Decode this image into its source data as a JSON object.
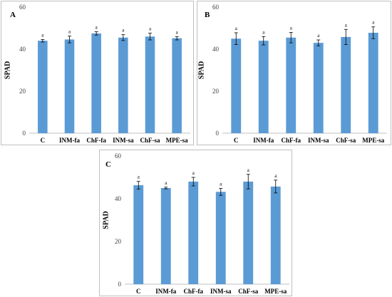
{
  "chart_data": [
    {
      "type": "bar",
      "panel_label": "A",
      "ylabel": "SPAD",
      "ylim": [
        0,
        60
      ],
      "yticks": [
        "0",
        "20",
        "40",
        "60"
      ],
      "categories": [
        "C",
        "INM-fa",
        "ChF-fa",
        "INM-sa",
        "ChF-sa",
        "MPE-sa"
      ],
      "values": [
        44.0,
        44.6,
        47.5,
        45.5,
        46.0,
        45.2
      ],
      "errors": [
        0.6,
        1.6,
        0.8,
        1.4,
        1.6,
        0.8
      ],
      "significance": [
        "a",
        "a",
        "a",
        "a",
        "a",
        "a"
      ],
      "bar_color": "#5b9bd5"
    },
    {
      "type": "bar",
      "panel_label": "B",
      "ylabel": "SPAD",
      "ylim": [
        0,
        60
      ],
      "yticks": [
        "0",
        "20",
        "40",
        "60"
      ],
      "categories": [
        "C",
        "INM-fa",
        "ChF-fa",
        "INM-sa",
        "ChF-sa",
        "MPE-sa"
      ],
      "values": [
        45.0,
        44.0,
        45.5,
        43.0,
        45.8,
        47.8
      ],
      "errors": [
        2.8,
        2.0,
        2.5,
        1.4,
        3.6,
        2.8
      ],
      "significance": [
        "a",
        "a",
        "a",
        "a",
        "a",
        "a"
      ],
      "bar_color": "#5b9bd5"
    },
    {
      "type": "bar",
      "panel_label": "C",
      "ylabel": "SPAD",
      "ylim": [
        0,
        60
      ],
      "yticks": [
        "0",
        "20",
        "40",
        "60"
      ],
      "categories": [
        "C",
        "INM-fa",
        "ChF-fa",
        "INM-sa",
        "ChF-sa",
        "MPE-sa"
      ],
      "values": [
        46.3,
        45.0,
        48.0,
        43.2,
        48.0,
        45.7
      ],
      "errors": [
        1.8,
        0.4,
        2.0,
        1.6,
        3.4,
        3.0
      ],
      "significance": [
        "a",
        "a",
        "a",
        "a",
        "a",
        "a"
      ],
      "bar_color": "#5b9bd5"
    }
  ]
}
